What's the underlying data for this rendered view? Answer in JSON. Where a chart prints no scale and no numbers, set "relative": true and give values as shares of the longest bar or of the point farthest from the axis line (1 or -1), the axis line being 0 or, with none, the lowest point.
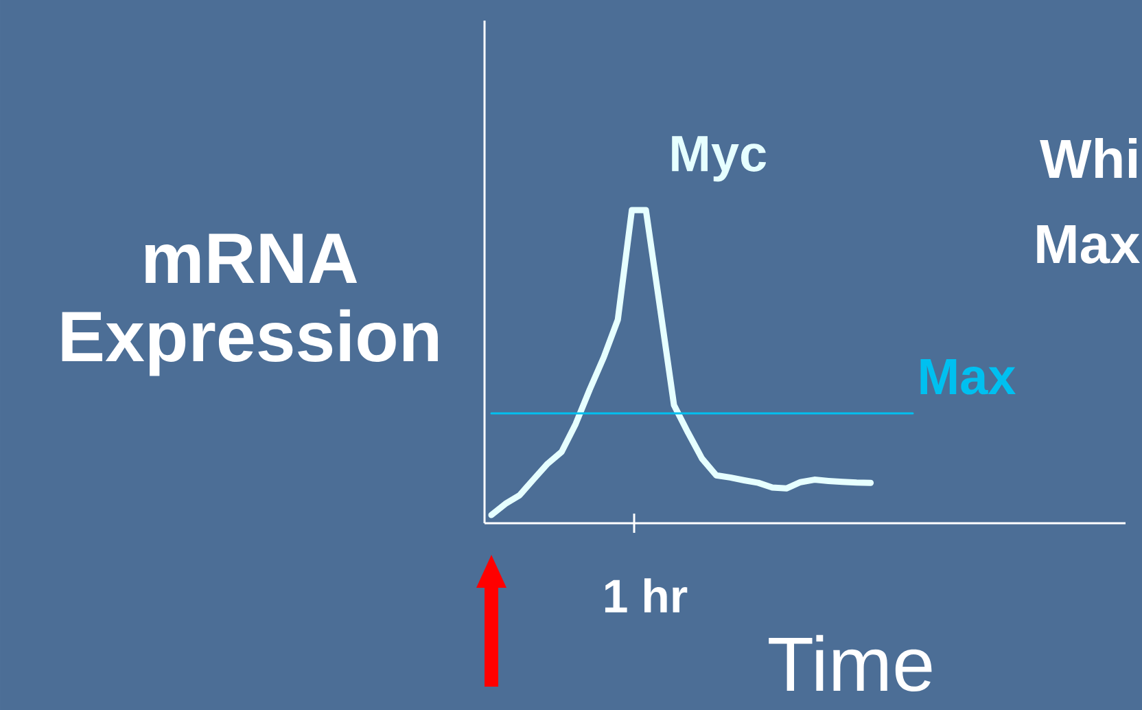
{
  "chart_data": {
    "type": "line",
    "relative": true,
    "xlabel": "Time",
    "ylabel": "mRNA Expression",
    "annotations": [
      "1 hr",
      "Whi",
      "Max"
    ],
    "categories": [
      null,
      null,
      null,
      null,
      null,
      null,
      null,
      null,
      null,
      null,
      null,
      null,
      null,
      null,
      null,
      null,
      null,
      null,
      null,
      null,
      null,
      null,
      null,
      null,
      null,
      null,
      null,
      null,
      null,
      null,
      null
    ],
    "series": [
      {
        "name": "Myc",
        "color": "#e6ffff",
        "values": [
          0.026,
          0.062,
          0.089,
          0.14,
          0.19,
          0.228,
          0.317,
          0.427,
          0.53,
          0.65,
          1,
          1,
          0.69,
          0.377,
          0.289,
          0.206,
          0.153,
          0.146,
          0.137,
          0.129,
          0.114,
          0.111,
          0.131,
          0.139,
          0.135,
          0.132,
          0.13,
          0.129,
          null,
          null,
          null
        ]
      },
      {
        "name": "Max",
        "color": "#00c0f0",
        "values": [
          0.351,
          0.351,
          0.351,
          0.351,
          0.351,
          0.351,
          0.351,
          0.351,
          0.351,
          0.351,
          0.351,
          0.351,
          0.351,
          0.351,
          0.351,
          0.351,
          0.351,
          0.351,
          0.351,
          0.351,
          0.351,
          0.351,
          0.351,
          0.351,
          0.351,
          0.351,
          0.351,
          0.351,
          0.351,
          0.351,
          0.351
        ]
      }
    ]
  }
}
